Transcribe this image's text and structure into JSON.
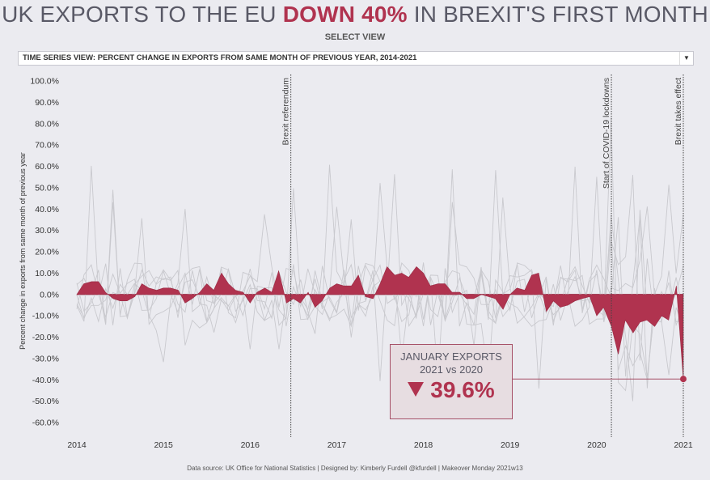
{
  "header": {
    "title_part1": "UK EXPORTS TO THE EU ",
    "title_highlight": "DOWN 40%",
    "title_part2": " IN BREXIT'S FIRST MONTH",
    "select_label": "SELECT VIEW",
    "dropdown_value": "TIME SERIES VIEW: PERCENT CHANGE IN EXPORTS FROM SAME MONTH OF PREVIOUS YEAR, 2014-2021"
  },
  "callout": {
    "line1": "JANUARY EXPORTS",
    "line2": "2021 vs 2020",
    "value": "39.6%",
    "direction": "down"
  },
  "footer": "Data source: UK Office for National Statistics  |  Designed by: Kimberly Furdell @kfurdell  |  Makeover Monday 2021w13",
  "colors": {
    "accent": "#b0334f",
    "title": "#595966",
    "grey_series": "#c8c8cc"
  },
  "chart_data": {
    "type": "area",
    "ylabel": "Percent change in exports from same month of previous year",
    "ylim": [
      -60,
      100
    ],
    "yticks": [
      100,
      90,
      80,
      70,
      60,
      50,
      40,
      30,
      20,
      10,
      0,
      -10,
      -20,
      -30,
      -40,
      -50,
      -60
    ],
    "ytick_labels": [
      "100.0%",
      "90.0%",
      "80.0%",
      "70.0%",
      "60.0%",
      "50.0%",
      "40.0%",
      "30.0%",
      "20.0%",
      "10.0%",
      "0.0%",
      "-10.0%",
      "-20.0%",
      "-30.0%",
      "-40.0%",
      "-50.0%",
      "-60.0%"
    ],
    "xlim": [
      2014,
      2021.1
    ],
    "xticks": [
      2014,
      2015,
      2016,
      2017,
      2018,
      2019,
      2020,
      2021
    ],
    "xtick_labels": [
      "2014",
      "2015",
      "2016",
      "2017",
      "2018",
      "2019",
      "2020",
      "2021"
    ],
    "events": [
      {
        "x": 2016.47,
        "label": "Brexit referendum"
      },
      {
        "x": 2020.17,
        "label": "Start of COVID-19 lockdowns"
      },
      {
        "x": 2021.0,
        "label": "Brexit takes effect"
      }
    ],
    "highlight_point": {
      "x": 2021.0,
      "y": -39.6
    },
    "series": [
      {
        "values": [
          [
            2014.0,
            0
          ],
          [
            2014.08,
            5
          ],
          [
            2014.17,
            6
          ],
          [
            2014.25,
            6
          ],
          [
            2014.33,
            1
          ],
          [
            2014.42,
            -2
          ],
          [
            2014.5,
            -3
          ],
          [
            2014.58,
            -3
          ],
          [
            2014.67,
            -1
          ],
          [
            2014.75,
            5
          ],
          [
            2014.83,
            3
          ],
          [
            2014.92,
            2
          ],
          [
            2015.0,
            3
          ],
          [
            2015.08,
            3
          ],
          [
            2015.17,
            2
          ],
          [
            2015.25,
            -4
          ],
          [
            2015.33,
            -2
          ],
          [
            2015.42,
            1
          ],
          [
            2015.5,
            5
          ],
          [
            2015.58,
            2
          ],
          [
            2015.67,
            10
          ],
          [
            2015.75,
            5
          ],
          [
            2015.83,
            2
          ],
          [
            2015.92,
            1
          ],
          [
            2016.0,
            -4
          ],
          [
            2016.08,
            1
          ],
          [
            2016.17,
            3
          ],
          [
            2016.25,
            1
          ],
          [
            2016.33,
            11
          ],
          [
            2016.42,
            -4
          ],
          [
            2016.5,
            -2
          ],
          [
            2016.58,
            -4
          ],
          [
            2016.67,
            1
          ],
          [
            2016.75,
            -6
          ],
          [
            2016.83,
            -3
          ],
          [
            2016.92,
            3
          ],
          [
            2017.0,
            5
          ],
          [
            2017.08,
            4
          ],
          [
            2017.17,
            4
          ],
          [
            2017.25,
            9
          ],
          [
            2017.33,
            -1
          ],
          [
            2017.42,
            -2
          ],
          [
            2017.5,
            5
          ],
          [
            2017.58,
            13
          ],
          [
            2017.67,
            9
          ],
          [
            2017.75,
            10
          ],
          [
            2017.83,
            8
          ],
          [
            2017.92,
            13
          ],
          [
            2018.0,
            10
          ],
          [
            2018.08,
            4
          ],
          [
            2018.17,
            5
          ],
          [
            2018.25,
            5
          ],
          [
            2018.33,
            1
          ],
          [
            2018.42,
            1
          ],
          [
            2018.5,
            -2
          ],
          [
            2018.58,
            -2
          ],
          [
            2018.67,
            0
          ],
          [
            2018.75,
            -1
          ],
          [
            2018.83,
            -2
          ],
          [
            2018.92,
            -7
          ],
          [
            2019.0,
            0
          ],
          [
            2019.08,
            3
          ],
          [
            2019.17,
            2
          ],
          [
            2019.25,
            9
          ],
          [
            2019.33,
            10
          ],
          [
            2019.42,
            -8
          ],
          [
            2019.5,
            -3
          ],
          [
            2019.58,
            -6
          ],
          [
            2019.67,
            -5
          ],
          [
            2019.75,
            -3
          ],
          [
            2019.83,
            -2
          ],
          [
            2019.92,
            -1
          ],
          [
            2020.0,
            -10
          ],
          [
            2020.08,
            -6
          ],
          [
            2020.17,
            -15
          ],
          [
            2020.25,
            -28
          ],
          [
            2020.33,
            -12
          ],
          [
            2020.42,
            -18
          ],
          [
            2020.5,
            -13
          ],
          [
            2020.58,
            -12
          ],
          [
            2020.67,
            -15
          ],
          [
            2020.75,
            -10
          ],
          [
            2020.83,
            -12
          ],
          [
            2020.92,
            4
          ],
          [
            2021.0,
            -39.6
          ]
        ]
      }
    ]
  }
}
